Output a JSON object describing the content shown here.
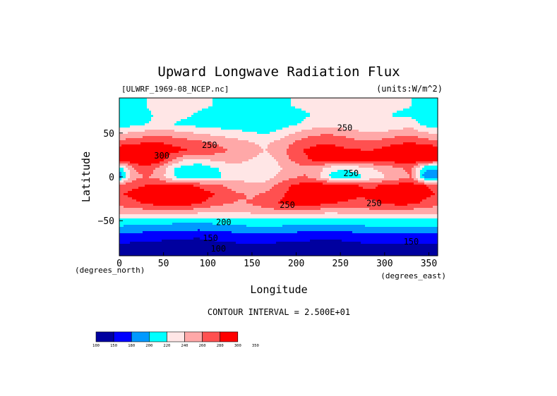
{
  "chart_data": {
    "type": "heatmap",
    "title": "Upward Longwave Radiation Flux",
    "file_label": "[ULWRF_1969-08_NCEP.nc]",
    "units_label": "(units:W/m^2)",
    "xlabel": "Longitude",
    "ylabel": "Latitude",
    "x_unit_label": "(degrees_east)",
    "y_unit_label": "(degrees_north)",
    "xlim": [
      0,
      360
    ],
    "ylim": [
      -90,
      90
    ],
    "x_ticks": [
      0,
      50,
      100,
      150,
      200,
      250,
      300,
      350
    ],
    "y_ticks": [
      50,
      0,
      -50
    ],
    "x_tick_labels": [
      "0",
      "50",
      "100",
      "150",
      "200",
      "250",
      "300",
      "350"
    ],
    "y_tick_labels": [
      "50",
      "0",
      "−50"
    ],
    "contour_interval_text": "CONTOUR INTERVAL = 2.500E+01",
    "colorbar": {
      "levels": [
        "100",
        "150",
        "180",
        "200",
        "220",
        "240",
        "260",
        "280",
        "300",
        "350"
      ],
      "colors": [
        "#00009f",
        "#0000ff",
        "#0099ff",
        "#00ffff",
        "#ffe6e6",
        "#ffa8a8",
        "#ff5050",
        "#ff0000"
      ]
    },
    "contour_labels": [
      {
        "text": "250",
        "x": 255,
        "y": 56
      },
      {
        "text": "250",
        "x": 102,
        "y": 36
      },
      {
        "text": "300",
        "x": 48,
        "y": 24
      },
      {
        "text": "250",
        "x": 262,
        "y": 4
      },
      {
        "text": "250",
        "x": 190,
        "y": -32
      },
      {
        "text": "250",
        "x": 288,
        "y": -30
      },
      {
        "text": "200",
        "x": 118,
        "y": -52
      },
      {
        "text": "150",
        "x": 103,
        "y": -70
      },
      {
        "text": "150",
        "x": 330,
        "y": -74
      },
      {
        "text": "100",
        "x": 112,
        "y": -82
      }
    ],
    "bands": [
      {
        "lat": -90,
        "v": [
          120,
          120,
          115,
          110,
          110,
          110,
          115,
          115,
          120,
          120,
          120,
          120,
          120,
          115,
          115,
          110,
          110,
          115,
          120,
          120,
          120,
          120,
          120,
          120
        ]
      },
      {
        "lat": -80,
        "v": [
          140,
          138,
          135,
          130,
          128,
          125,
          130,
          135,
          138,
          140,
          140,
          140,
          138,
          135,
          132,
          130,
          128,
          132,
          138,
          140,
          142,
          142,
          140,
          140
        ]
      },
      {
        "lat": -70,
        "v": [
          165,
          162,
          160,
          158,
          155,
          152,
          150,
          155,
          158,
          162,
          165,
          165,
          162,
          160,
          158,
          155,
          155,
          158,
          162,
          165,
          168,
          168,
          166,
          165
        ]
      },
      {
        "lat": -60,
        "v": [
          192,
          190,
          188,
          186,
          185,
          183,
          182,
          185,
          188,
          190,
          192,
          193,
          192,
          190,
          188,
          186,
          185,
          187,
          190,
          192,
          194,
          194,
          193,
          192
        ]
      },
      {
        "lat": -50,
        "v": [
          212,
          212,
          211,
          210,
          208,
          206,
          205,
          208,
          210,
          212,
          213,
          214,
          213,
          211,
          210,
          209,
          208,
          210,
          212,
          213,
          214,
          214,
          213,
          212
        ]
      },
      {
        "lat": -40,
        "v": [
          245,
          248,
          250,
          252,
          252,
          250,
          245,
          240,
          238,
          240,
          245,
          250,
          252,
          250,
          248,
          246,
          244,
          246,
          250,
          252,
          252,
          250,
          248,
          246
        ]
      },
      {
        "lat": -30,
        "v": [
          268,
          275,
          282,
          290,
          292,
          290,
          282,
          272,
          262,
          258,
          262,
          270,
          280,
          288,
          290,
          288,
          282,
          276,
          272,
          276,
          282,
          288,
          286,
          276
        ]
      },
      {
        "lat": -20,
        "v": [
          278,
          285,
          290,
          292,
          295,
          295,
          290,
          282,
          272,
          262,
          258,
          262,
          275,
          286,
          294,
          300,
          298,
          292,
          286,
          284,
          290,
          296,
          294,
          286
        ]
      },
      {
        "lat": -10,
        "v": [
          272,
          276,
          280,
          282,
          283,
          283,
          278,
          268,
          258,
          248,
          244,
          250,
          266,
          282,
          290,
          296,
          294,
          286,
          280,
          276,
          284,
          290,
          290,
          282
        ]
      },
      {
        "lat": 0,
        "v": [
          185,
          250,
          262,
          252,
          222,
          208,
          202,
          212,
          222,
          236,
          230,
          228,
          245,
          256,
          262,
          242,
          214,
          205,
          215,
          228,
          238,
          246,
          262,
          190
        ]
      },
      {
        "lat": 10,
        "v": [
          202,
          258,
          272,
          256,
          222,
          210,
          206,
          216,
          225,
          236,
          226,
          222,
          236,
          248,
          256,
          248,
          228,
          222,
          230,
          240,
          248,
          256,
          266,
          206
        ]
      },
      {
        "lat": 20,
        "v": [
          290,
          300,
          306,
          296,
          262,
          240,
          236,
          244,
          248,
          246,
          240,
          232,
          244,
          262,
          276,
          290,
          294,
          292,
          290,
          286,
          290,
          296,
          300,
          292
        ]
      },
      {
        "lat": 30,
        "v": [
          296,
          304,
          308,
          302,
          288,
          282,
          276,
          272,
          262,
          252,
          246,
          240,
          252,
          268,
          282,
          290,
          290,
          284,
          282,
          280,
          288,
          296,
          302,
          298
        ]
      },
      {
        "lat": 40,
        "v": [
          266,
          272,
          276,
          278,
          274,
          268,
          262,
          258,
          252,
          245,
          240,
          236,
          244,
          258,
          268,
          274,
          276,
          270,
          264,
          262,
          268,
          274,
          278,
          270
        ]
      },
      {
        "lat": 50,
        "v": [
          236,
          244,
          248,
          250,
          248,
          244,
          238,
          234,
          230,
          226,
          222,
          218,
          226,
          238,
          250,
          256,
          256,
          252,
          246,
          242,
          244,
          250,
          254,
          242
        ]
      },
      {
        "lat": 60,
        "v": [
          208,
          214,
          220,
          222,
          220,
          216,
          212,
          210,
          208,
          206,
          204,
          202,
          208,
          216,
          224,
          230,
          232,
          228,
          224,
          222,
          224,
          228,
          230,
          214
        ]
      },
      {
        "lat": 70,
        "v": [
          212,
          212,
          218,
          222,
          224,
          222,
          218,
          214,
          210,
          208,
          206,
          206,
          208,
          212,
          218,
          222,
          228,
          232,
          230,
          226,
          222,
          218,
          216,
          212
        ]
      },
      {
        "lat": 80,
        "v": [
          218,
          218,
          220,
          222,
          224,
          224,
          222,
          220,
          218,
          216,
          216,
          216,
          218,
          220,
          222,
          224,
          226,
          228,
          228,
          226,
          224,
          222,
          220,
          218
        ]
      },
      {
        "lat": 90,
        "v": [
          220,
          220,
          220,
          220,
          220,
          220,
          220,
          220,
          220,
          220,
          220,
          220,
          220,
          220,
          220,
          220,
          220,
          220,
          220,
          220,
          220,
          220,
          220,
          220
        ]
      }
    ]
  }
}
